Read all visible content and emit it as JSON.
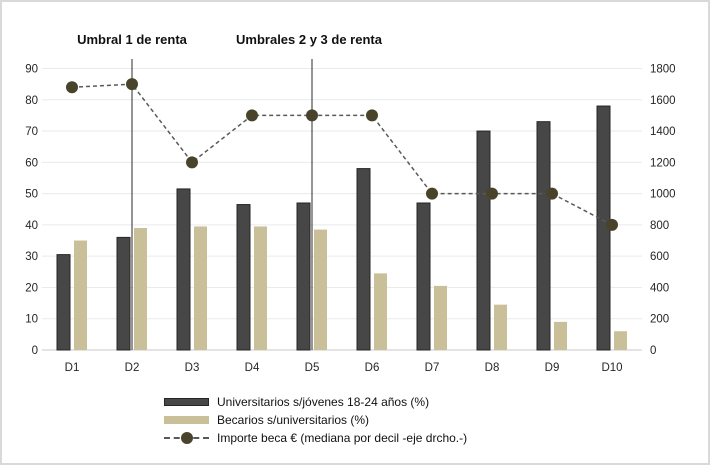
{
  "chart_data": {
    "type": "combo-bar-line",
    "categories": [
      "D1",
      "D2",
      "D3",
      "D4",
      "D5",
      "D6",
      "D7",
      "D8",
      "D9",
      "D10"
    ],
    "series": [
      {
        "name": "Universitarios s/jóvenes 18-24 años (%)",
        "kind": "bar",
        "axis": "left",
        "color": "#474747",
        "border_color": "#262626",
        "values": [
          30.5,
          36,
          51.5,
          46.5,
          47,
          58,
          47,
          70,
          73,
          78
        ]
      },
      {
        "name": "Becarios s/universitarios (%)",
        "kind": "bar",
        "axis": "left",
        "color": "#c9c099",
        "values": [
          35,
          39,
          39.5,
          39.5,
          38.5,
          24.5,
          20.5,
          14.5,
          9,
          6
        ]
      },
      {
        "name": "Importe beca € (mediana por decil -eje drcho.-)",
        "kind": "line",
        "axis": "right",
        "line_color": "#595959",
        "marker_color": "#4a432c",
        "line_style": "dashed",
        "values": [
          1680,
          1700,
          1200,
          1500,
          1500,
          1500,
          1000,
          1000,
          1000,
          800
        ]
      }
    ],
    "left_axis": {
      "min": 0,
      "max": 90,
      "step": 10,
      "ticks": [
        0,
        10,
        20,
        30,
        40,
        50,
        60,
        70,
        80,
        90
      ]
    },
    "right_axis": {
      "min": 0,
      "max": 1800,
      "step": 200,
      "ticks": [
        0,
        200,
        400,
        600,
        800,
        1000,
        1200,
        1400,
        1600,
        1800
      ]
    },
    "annotations": [
      {
        "label": "Umbral 1 de renta",
        "category": "D2"
      },
      {
        "label": "Umbrales 2 y 3 de renta",
        "category": "D5"
      }
    ],
    "legend_position": "bottom",
    "grid": "horizontal"
  },
  "colors": {
    "gridline": "#eaeaea",
    "axis_line": "#c9c9c9",
    "threshold_line": "#2b2b2b",
    "tick_label": "#262626"
  }
}
